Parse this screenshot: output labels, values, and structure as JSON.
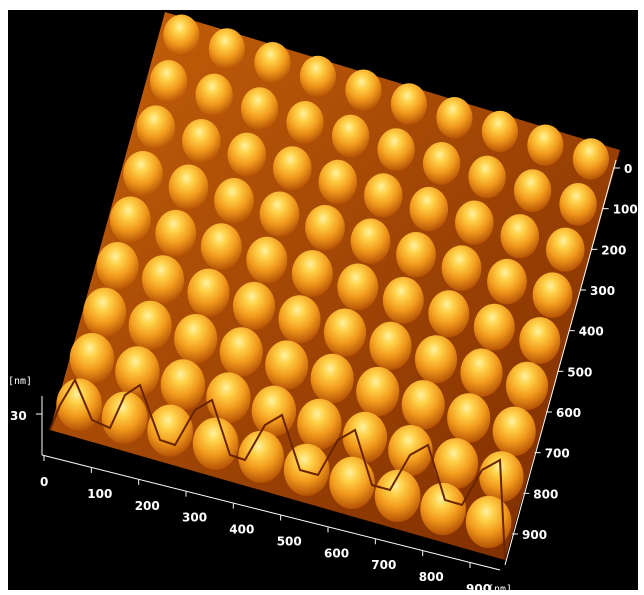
{
  "figure": {
    "subject": "AFM 3D topography",
    "z_axis": {
      "unit": "[nm]",
      "ticks": [
        "30"
      ]
    },
    "x_axis": {
      "unit": "[nm]",
      "ticks": [
        "0",
        "100",
        "200",
        "300",
        "400",
        "500",
        "600",
        "700",
        "800",
        "900"
      ]
    },
    "y_axis": {
      "ticks": [
        "0",
        "100",
        "200",
        "300",
        "400",
        "500",
        "600",
        "700",
        "800",
        "900"
      ]
    },
    "lattice": {
      "rows": 9,
      "cols": 10
    },
    "colors": {
      "background": "#000000",
      "peak_highlight": "#ffe07a",
      "peak_mid": "#f4a020",
      "valley": "#9a3a00",
      "axis": "#ffffff"
    }
  }
}
